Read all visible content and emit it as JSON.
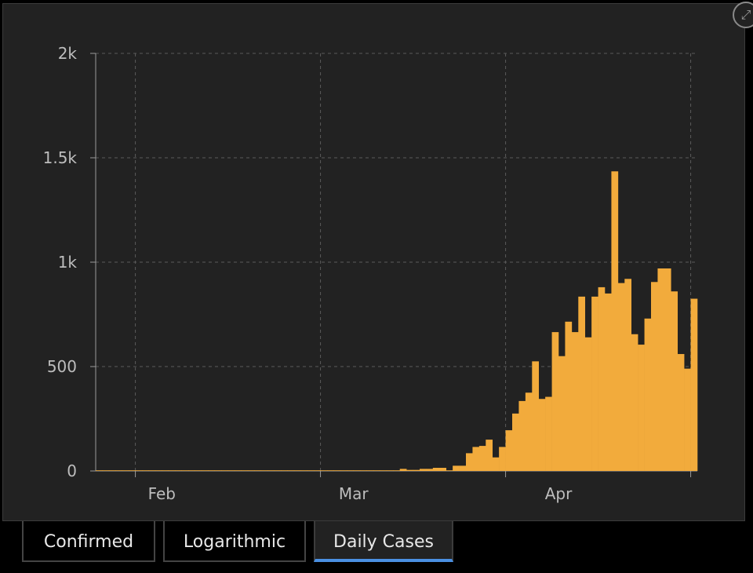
{
  "chart_data": {
    "type": "bar",
    "x_start": "2020-01-22",
    "x_end": "2020-04-22",
    "y_ticks": [
      {
        "value": 0,
        "label": "0"
      },
      {
        "value": 500,
        "label": "500"
      },
      {
        "value": 1000,
        "label": "1k"
      },
      {
        "value": 1500,
        "label": "1.5k"
      },
      {
        "value": 2000,
        "label": "2k"
      }
    ],
    "x_ticks": [
      {
        "date": "2020-02-01",
        "label": "Feb"
      },
      {
        "date": "2020-03-01",
        "label": "Mar"
      },
      {
        "date": "2020-04-01",
        "label": "Apr"
      }
    ],
    "ylim": [
      0,
      2000
    ],
    "grid": true,
    "bar_color": "#f2ab3c",
    "series": [
      {
        "values": [
          0,
          0,
          0,
          0,
          0,
          0,
          0,
          0,
          0,
          0,
          0,
          0,
          0,
          0,
          0,
          0,
          0,
          0,
          0,
          0,
          0,
          0,
          0,
          0,
          0,
          0,
          0,
          0,
          0,
          0,
          0,
          0,
          0,
          0,
          0,
          0,
          0,
          0,
          0,
          0,
          0,
          0,
          0,
          0,
          0,
          0,
          0,
          0,
          0,
          0,
          0,
          0,
          0,
          0,
          0,
          0,
          0,
          0,
          0,
          0,
          0,
          0,
          0,
          0,
          0,
          0,
          0,
          0,
          0,
          0,
          0,
          0,
          0,
          0,
          0,
          0,
          0,
          0,
          0,
          0,
          0,
          0,
          0,
          0,
          0,
          0,
          0,
          0,
          0,
          0,
          0,
          0,
          0,
          0,
          0,
          0,
          0,
          0,
          0,
          0,
          0,
          0,
          0,
          0,
          0,
          0,
          0,
          0,
          0,
          0,
          0,
          0,
          0,
          0,
          0,
          0,
          0,
          0,
          0,
          0,
          0,
          0,
          0,
          0,
          0,
          0,
          0,
          0,
          0,
          0,
          0,
          0,
          0,
          0,
          0,
          0,
          0,
          0,
          0,
          0,
          0,
          0,
          0,
          0,
          0,
          0,
          0,
          0,
          0,
          0,
          0,
          0,
          0,
          0,
          0,
          0,
          0,
          0,
          0,
          0,
          0,
          0,
          0,
          0,
          0,
          0,
          0,
          0,
          0,
          0,
          0,
          0,
          0,
          0,
          0,
          0,
          0,
          0,
          0,
          0,
          0,
          0
        ]
      }
    ]
  },
  "tabs": [
    {
      "label": "Confirmed"
    },
    {
      "label": "Logarithmic"
    },
    {
      "label": "Daily Cases"
    }
  ],
  "active_tab": 2,
  "expand_icon": "expand-icon"
}
